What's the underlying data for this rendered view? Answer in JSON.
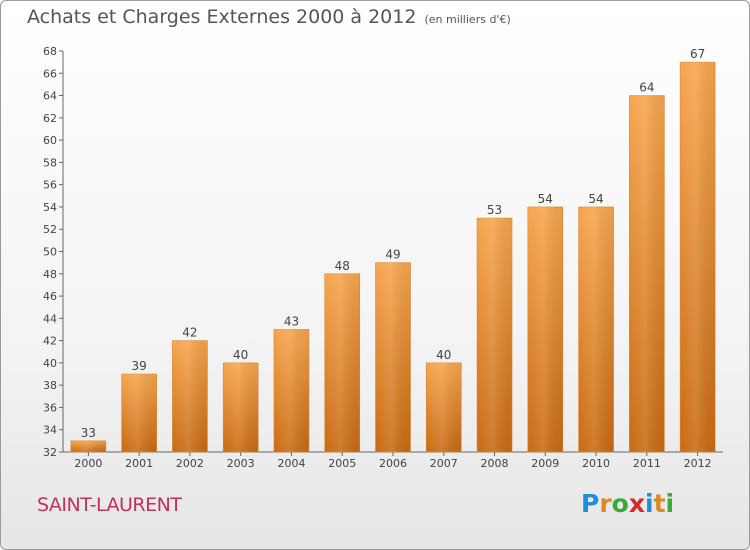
{
  "title": "Achats et Charges Externes 2000 à 2012",
  "subtitle": "(en milliers d'€)",
  "commune": "SAINT-LAURENT",
  "logo": "Proxiti",
  "colors": {
    "bar_top": "#f7a54d",
    "bar_bottom": "#c86a12",
    "commune_text": "#c2315a"
  },
  "chart_data": {
    "type": "bar",
    "title": "Achats et Charges Externes 2000 à 2012",
    "subtitle": "(en milliers d'€)",
    "xlabel": "",
    "ylabel": "",
    "categories": [
      "2000",
      "2001",
      "2002",
      "2003",
      "2004",
      "2005",
      "2006",
      "2007",
      "2008",
      "2009",
      "2010",
      "2011",
      "2012"
    ],
    "values": [
      33,
      39,
      42,
      40,
      43,
      48,
      49,
      40,
      53,
      54,
      54,
      64,
      67
    ],
    "ylim": [
      32,
      68
    ],
    "yticks": [
      32,
      34,
      36,
      38,
      40,
      42,
      44,
      46,
      48,
      50,
      52,
      54,
      56,
      58,
      60,
      62,
      64,
      66,
      68
    ],
    "grid": false,
    "data_labels": true
  }
}
